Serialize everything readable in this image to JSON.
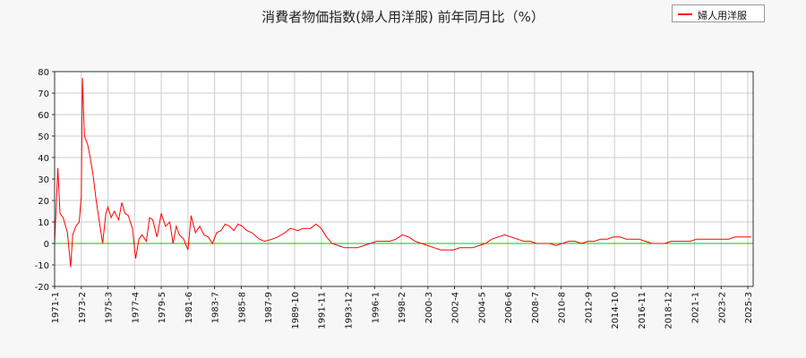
{
  "chart_data": {
    "type": "line",
    "title": "消費者物価指数(婦人用洋服) 前年同月比（%）",
    "xlabel": "",
    "ylabel": "",
    "ylim": [
      -20,
      80
    ],
    "yticks": [
      -20,
      -10,
      0,
      10,
      20,
      30,
      40,
      50,
      60,
      70,
      80
    ],
    "xticks": [
      "1971-1",
      "1973-2",
      "1975-3",
      "1977-4",
      "1979-5",
      "1981-6",
      "1983-7",
      "1985-8",
      "1987-9",
      "1989-10",
      "1991-11",
      "1993-12",
      "1996-1",
      "1998-2",
      "2000-3",
      "2002-4",
      "2004-5",
      "2006-6",
      "2008-7",
      "2010-8",
      "2012-9",
      "2014-10",
      "2016-11",
      "2018-12",
      "2021-1",
      "2023-2",
      "2025-3"
    ],
    "grid": true,
    "legend_position": "top-right",
    "reference_line": {
      "y": 0,
      "color": "#00cc00"
    },
    "series": [
      {
        "name": "婦人用洋服",
        "color": "#ff0000",
        "points": [
          [
            "1971-01",
            0
          ],
          [
            "1971-04",
            35
          ],
          [
            "1971-06",
            14
          ],
          [
            "1971-09",
            12
          ],
          [
            "1972-01",
            5
          ],
          [
            "1972-04",
            -11
          ],
          [
            "1972-06",
            4
          ],
          [
            "1972-09",
            8
          ],
          [
            "1972-12",
            10
          ],
          [
            "1973-02",
            22
          ],
          [
            "1973-03",
            77
          ],
          [
            "1973-05",
            50
          ],
          [
            "1973-08",
            46
          ],
          [
            "1973-10",
            41
          ],
          [
            "1974-01",
            32
          ],
          [
            "1974-04",
            20
          ],
          [
            "1974-07",
            10
          ],
          [
            "1974-10",
            0
          ],
          [
            "1975-01",
            14
          ],
          [
            "1975-03",
            17
          ],
          [
            "1975-06",
            12
          ],
          [
            "1975-09",
            15
          ],
          [
            "1976-01",
            11
          ],
          [
            "1976-04",
            19
          ],
          [
            "1976-07",
            14
          ],
          [
            "1976-10",
            13
          ],
          [
            "1977-02",
            7
          ],
          [
            "1977-05",
            -7
          ],
          [
            "1977-08",
            2
          ],
          [
            "1977-11",
            4
          ],
          [
            "1978-03",
            1
          ],
          [
            "1978-06",
            12
          ],
          [
            "1978-09",
            11
          ],
          [
            "1979-01",
            3
          ],
          [
            "1979-05",
            14
          ],
          [
            "1979-09",
            8
          ],
          [
            "1980-01",
            10
          ],
          [
            "1980-04",
            0
          ],
          [
            "1980-07",
            8
          ],
          [
            "1980-10",
            4
          ],
          [
            "1981-02",
            2
          ],
          [
            "1981-06",
            -3
          ],
          [
            "1981-09",
            13
          ],
          [
            "1982-01",
            5
          ],
          [
            "1982-05",
            8
          ],
          [
            "1982-09",
            4
          ],
          [
            "1983-01",
            3
          ],
          [
            "1983-05",
            0
          ],
          [
            "1983-09",
            5
          ],
          [
            "1984-01",
            6
          ],
          [
            "1984-05",
            9
          ],
          [
            "1984-09",
            8
          ],
          [
            "1985-01",
            6
          ],
          [
            "1985-05",
            9
          ],
          [
            "1985-09",
            8
          ],
          [
            "1986-01",
            6
          ],
          [
            "1986-06",
            5
          ],
          [
            "1987-01",
            2
          ],
          [
            "1987-06",
            1
          ],
          [
            "1988-01",
            2
          ],
          [
            "1988-06",
            3
          ],
          [
            "1989-01",
            5
          ],
          [
            "1989-06",
            7
          ],
          [
            "1990-01",
            6
          ],
          [
            "1990-06",
            7
          ],
          [
            "1991-01",
            7
          ],
          [
            "1991-06",
            9
          ],
          [
            "1991-11",
            7
          ],
          [
            "1992-04",
            3
          ],
          [
            "1992-09",
            0
          ],
          [
            "1993-03",
            -1
          ],
          [
            "1993-09",
            -2
          ],
          [
            "1994-03",
            -2
          ],
          [
            "1994-09",
            -2
          ],
          [
            "1995-03",
            -1
          ],
          [
            "1995-09",
            0
          ],
          [
            "1996-03",
            1
          ],
          [
            "1996-09",
            1
          ],
          [
            "1997-03",
            1
          ],
          [
            "1997-09",
            2
          ],
          [
            "1998-03",
            4
          ],
          [
            "1998-09",
            3
          ],
          [
            "1999-03",
            1
          ],
          [
            "1999-09",
            0
          ],
          [
            "2000-03",
            -1
          ],
          [
            "2000-09",
            -2
          ],
          [
            "2001-03",
            -3
          ],
          [
            "2001-09",
            -3
          ],
          [
            "2002-03",
            -3
          ],
          [
            "2002-09",
            -2
          ],
          [
            "2003-03",
            -2
          ],
          [
            "2003-09",
            -2
          ],
          [
            "2004-03",
            -1
          ],
          [
            "2004-09",
            0
          ],
          [
            "2005-03",
            2
          ],
          [
            "2005-09",
            3
          ],
          [
            "2006-03",
            4
          ],
          [
            "2006-09",
            3
          ],
          [
            "2007-03",
            2
          ],
          [
            "2007-09",
            1
          ],
          [
            "2008-03",
            1
          ],
          [
            "2008-09",
            0
          ],
          [
            "2009-03",
            0
          ],
          [
            "2009-09",
            0
          ],
          [
            "2010-03",
            -1
          ],
          [
            "2010-09",
            0
          ],
          [
            "2011-03",
            1
          ],
          [
            "2011-09",
            1
          ],
          [
            "2012-03",
            0
          ],
          [
            "2012-09",
            1
          ],
          [
            "2013-03",
            1
          ],
          [
            "2013-09",
            2
          ],
          [
            "2014-03",
            2
          ],
          [
            "2014-09",
            3
          ],
          [
            "2015-03",
            3
          ],
          [
            "2015-09",
            2
          ],
          [
            "2016-03",
            2
          ],
          [
            "2016-09",
            2
          ],
          [
            "2017-03",
            1
          ],
          [
            "2017-09",
            0
          ],
          [
            "2018-03",
            0
          ],
          [
            "2018-09",
            0
          ],
          [
            "2019-03",
            1
          ],
          [
            "2019-09",
            1
          ],
          [
            "2020-03",
            1
          ],
          [
            "2020-09",
            1
          ],
          [
            "2021-03",
            2
          ],
          [
            "2021-09",
            2
          ],
          [
            "2022-03",
            2
          ],
          [
            "2022-09",
            2
          ],
          [
            "2023-03",
            2
          ],
          [
            "2023-09",
            2
          ],
          [
            "2024-03",
            3
          ],
          [
            "2024-09",
            3
          ],
          [
            "2025-03",
            3
          ],
          [
            "2025-06",
            3
          ]
        ]
      }
    ]
  }
}
